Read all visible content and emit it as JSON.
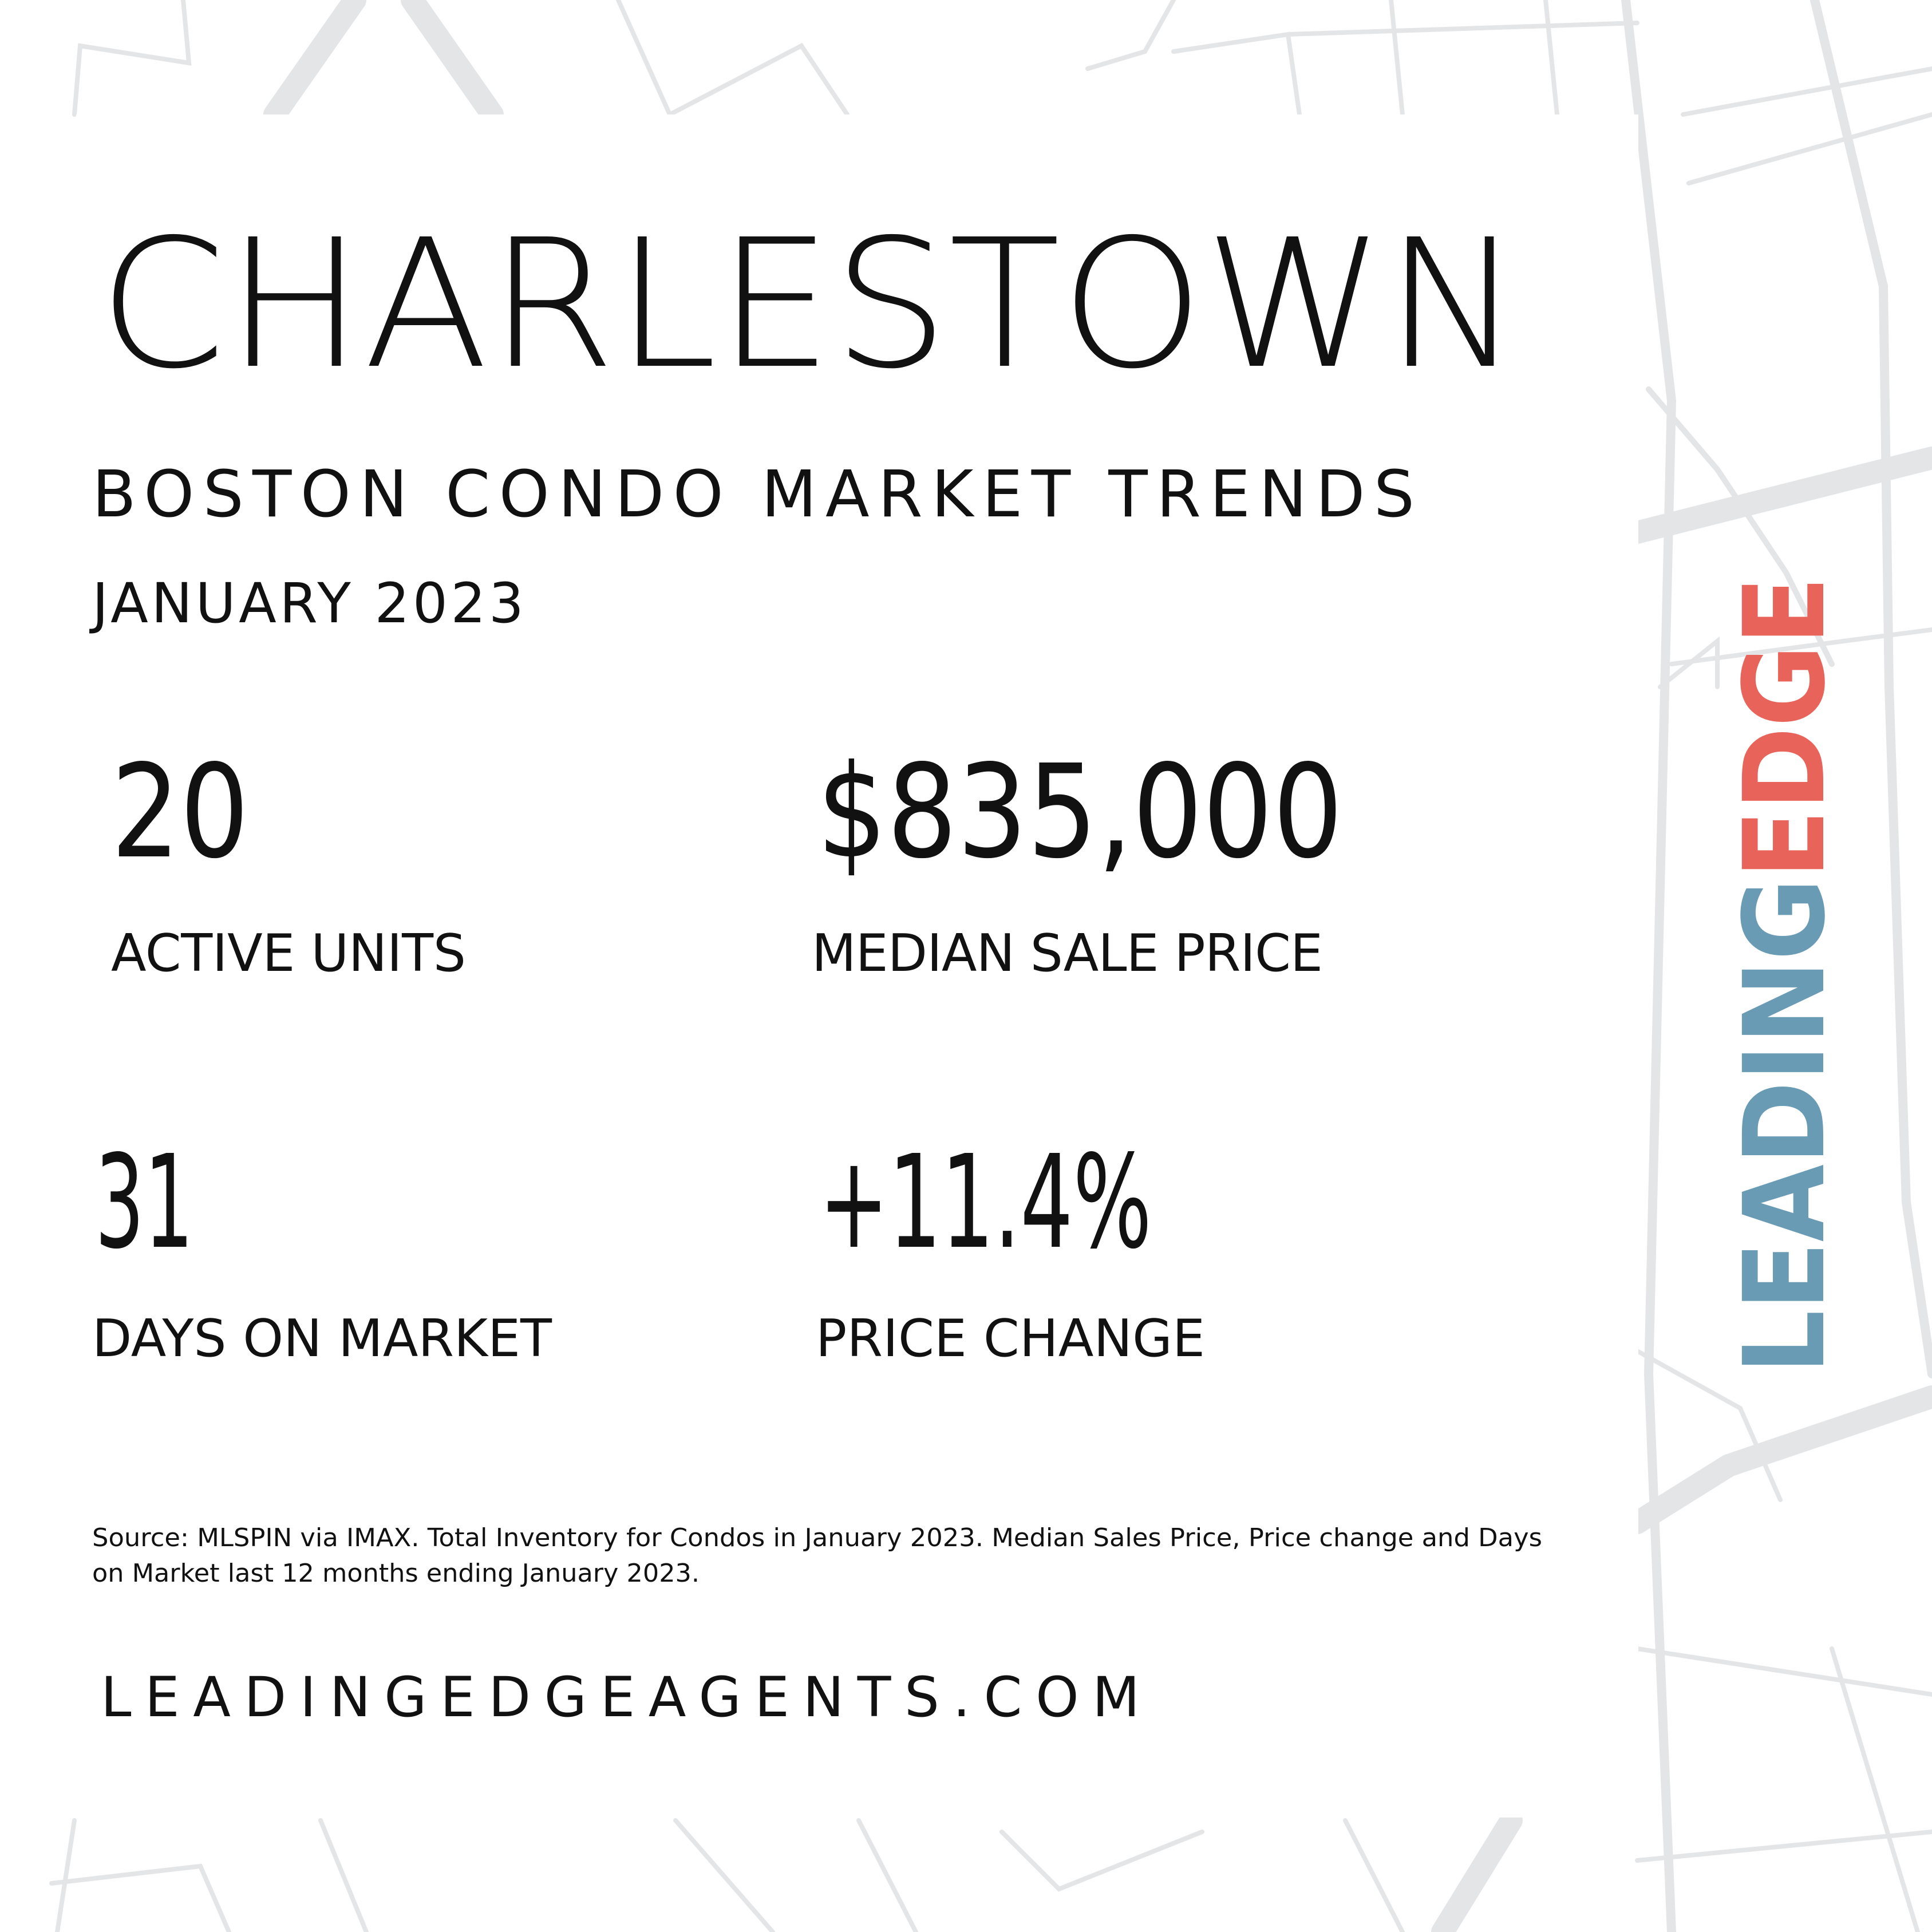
{
  "header": {
    "title": "CHARLESTOWN",
    "subtitle": "BOSTON CONDO MARKET TRENDS",
    "date": "JANUARY 2023"
  },
  "stats": [
    {
      "value": "20",
      "label": "ACTIVE UNITS"
    },
    {
      "value": "$835,000",
      "label": "MEDIAN SALE PRICE"
    },
    {
      "value": "31",
      "label": "DAYS ON MARKET"
    },
    {
      "value": "+11.4%",
      "label": "PRICE CHANGE"
    }
  ],
  "source": [
    "Source: MLSPIN via IMAX. Total Inventory for Condos in January 2023. Median Sales Price, Price change and Days",
    "on Market last 12 months ending January 2023."
  ],
  "website": "LEADINGEDGEAGENTS.COM",
  "logo": {
    "part1": "LEADING",
    "part2": "EDGE"
  }
}
